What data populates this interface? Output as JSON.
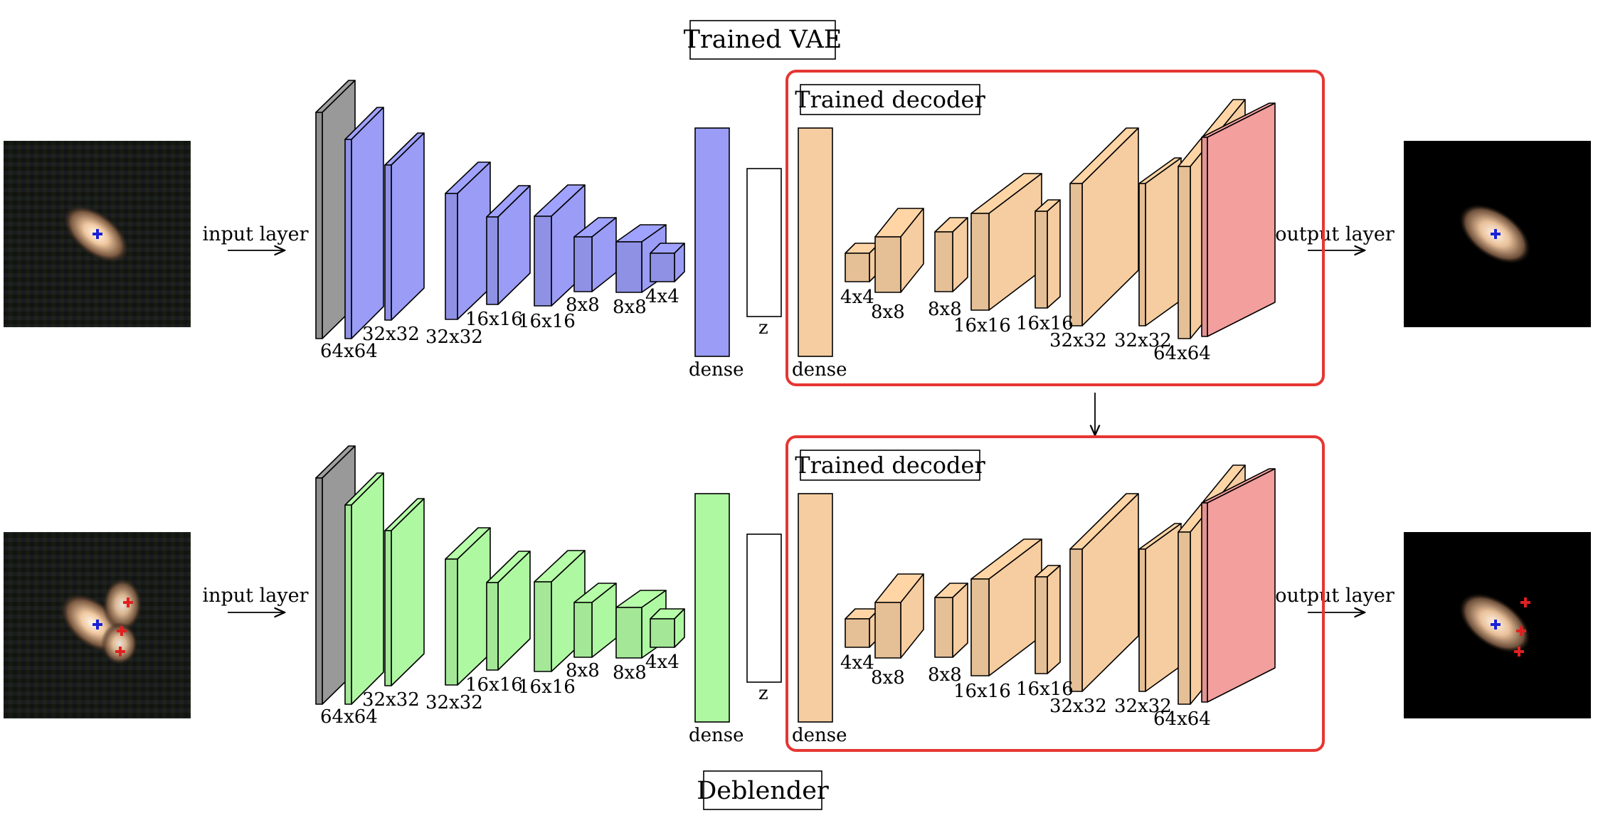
{
  "titles": {
    "vae": "Trained VAE",
    "deblender": "Deblender"
  },
  "decoder_label": "Trained decoder",
  "io": {
    "input": "input layer",
    "output": "output layer"
  },
  "colors": {
    "vae_layer": "#9a9cf6",
    "deblender_layer": "#aff8a2",
    "input_layer": "#999999",
    "decoder_layer": "#f6cda0",
    "output_layer": "#f29f9d",
    "frame": "#e63632"
  },
  "encoder_sizes": [
    "64x64",
    "32x32",
    "32x32",
    "16x16",
    "16x16",
    "8x8",
    "8x8",
    "4x4"
  ],
  "decoder_sizes": [
    "4x4",
    "8x8",
    "8x8",
    "16x16",
    "16x16",
    "32x32",
    "32x32",
    "64x64"
  ],
  "dense": "dense",
  "latent": "z",
  "markers": {
    "center": "blue cross",
    "neighbors": "red crosses"
  }
}
